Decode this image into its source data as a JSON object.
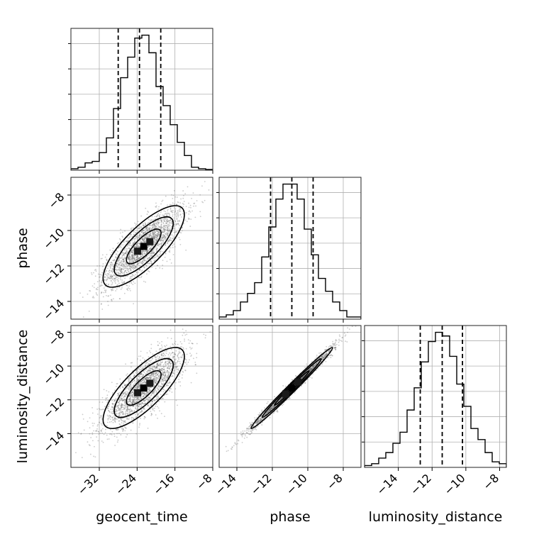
{
  "chart_data": {
    "type": "corner",
    "parameters": [
      "geocent_time",
      "phase",
      "luminosity_distance"
    ],
    "ranges": {
      "geocent_time": [
        -38,
        -8
      ],
      "phase": [
        -15,
        -7
      ],
      "luminosity_distance": [
        -16,
        -7.6
      ]
    },
    "ticks": {
      "geocent_time": [
        -32,
        -24,
        -16,
        -8
      ],
      "phase": [
        -14,
        -12,
        -10,
        -8
      ],
      "luminosity_distance": [
        -14,
        -12,
        -10,
        -8
      ]
    },
    "tick_labels": {
      "geocent_time": [
        "−32",
        "−24",
        "−16",
        "−8"
      ],
      "phase": [
        "−14",
        "−12",
        "−10",
        "−8"
      ],
      "luminosity_distance": [
        "−14",
        "−12",
        "−10",
        "−8"
      ]
    },
    "histograms": {
      "geocent_time": {
        "bin_start": -38,
        "bin_width": 1.5,
        "counts": [
          1,
          2,
          5,
          6,
          12,
          22,
          42,
          63,
          77,
          90,
          92,
          80,
          57,
          44,
          31,
          19,
          10,
          2,
          1,
          0.5
        ],
        "quantiles": [
          -28,
          -23.5,
          -19
        ]
      },
      "phase": {
        "bin_start": -15,
        "bin_width": 0.4,
        "counts": [
          1,
          2,
          4,
          8,
          12,
          17,
          29,
          43,
          56,
          63,
          63,
          56,
          42,
          30,
          19,
          13,
          8,
          4,
          1,
          1
        ],
        "quantiles": [
          -12.1,
          -10.9,
          -9.7
        ]
      },
      "luminosity_distance": {
        "bin_start": -16,
        "bin_width": 0.42,
        "counts": [
          1,
          2,
          5,
          8,
          13,
          19,
          31,
          43,
          57,
          68,
          73,
          71,
          60,
          45,
          33,
          21,
          15,
          8,
          3,
          2
        ],
        "quantiles": [
          -12.7,
          -11.4,
          -10.2
        ]
      }
    },
    "correlations": {
      "geocent_time|phase": 0.78,
      "geocent_time|luminosity_distance": 0.78,
      "phase|luminosity_distance": 0.99
    }
  }
}
